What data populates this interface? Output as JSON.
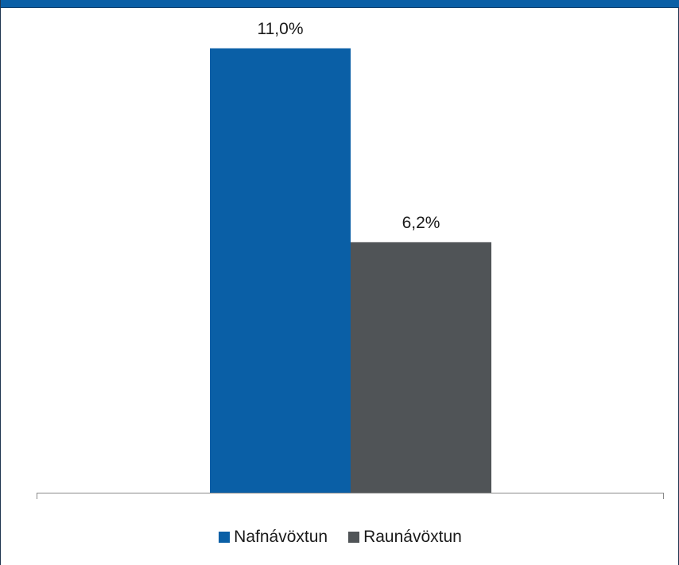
{
  "chart_data": {
    "type": "bar",
    "categories": [
      ""
    ],
    "series": [
      {
        "name": "Nafnávöxtun",
        "values": [
          11.0
        ],
        "labels": [
          "11,0%"
        ],
        "color": "#0a5fa6"
      },
      {
        "name": "Raunávöxtun",
        "values": [
          6.2
        ],
        "labels": [
          "6,2%"
        ],
        "color": "#505457"
      }
    ],
    "title": "",
    "xlabel": "",
    "ylabel": "",
    "ylim": [
      0,
      12
    ],
    "grid": false,
    "legend_position": "bottom"
  }
}
